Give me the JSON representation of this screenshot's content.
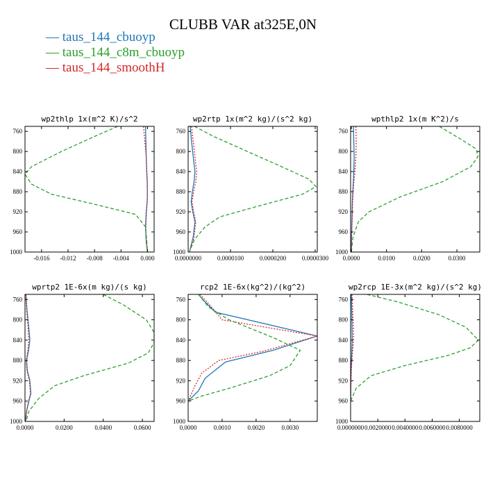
{
  "figure": {
    "title": "CLUBB VAR at325E,0N",
    "legend": [
      {
        "label": "— taus_144_cbuoyp",
        "color": "#1f77b4"
      },
      {
        "label": "— taus_144_c8m_cbuoyp",
        "color": "#2ca02c"
      },
      {
        "label": "— taus_144_smoothH",
        "color": "#d62728"
      }
    ]
  },
  "chart_data": [
    {
      "type": "line",
      "title": "wp2thlp  1x(m^2 K)/s^2",
      "xlim": [
        -0.0185,
        0.001
      ],
      "ylim": [
        1000,
        750
      ],
      "xticks": [
        -0.016,
        -0.012,
        -0.008,
        -0.004,
        0.0
      ],
      "xtick_labels": [
        "-0.016",
        "-0.012",
        "-0.008",
        "-0.004",
        "0.000"
      ],
      "yticks": [
        760,
        800,
        840,
        880,
        920,
        960,
        1000
      ],
      "ytick_labels": [
        "760",
        "800",
        "840",
        "880",
        "920",
        "960",
        "1000"
      ],
      "series": [
        {
          "name": "taus_144_cbuoyp",
          "color": "#1f77b4",
          "dash": "solid",
          "x": [
            -0.0003,
            -0.00025,
            -0.0002,
            -0.00012,
            -5e-05,
            -2e-05,
            -5e-05,
            -0.0002,
            -0.0003,
            -0.0002,
            0.0
          ],
          "y": [
            750,
            780,
            810,
            840,
            860,
            880,
            900,
            920,
            950,
            980,
            1000
          ]
        },
        {
          "name": "taus_144_smoothH",
          "color": "#d62728",
          "dash": "dot",
          "x": [
            -0.0006,
            -0.0004,
            -0.0002,
            -0.0001,
            -3e-05,
            -2e-05,
            -5e-05,
            -0.00015,
            -0.00025,
            -0.00018,
            0.0
          ],
          "y": [
            750,
            780,
            810,
            840,
            860,
            880,
            900,
            920,
            950,
            980,
            1000
          ]
        },
        {
          "name": "taus_144_c8m_cbuoyp",
          "color": "#2ca02c",
          "dash": "dash",
          "x": [
            -0.0045,
            -0.008,
            -0.013,
            -0.0175,
            -0.0185,
            -0.0175,
            -0.0145,
            -0.008,
            -0.0018,
            -0.0003,
            -0.0001,
            0.0
          ],
          "y": [
            750,
            770,
            800,
            830,
            845,
            865,
            885,
            905,
            925,
            950,
            980,
            1000
          ]
        }
      ]
    },
    {
      "type": "line",
      "title": "wp2rtp  1x(m^2 kg)/(s^2 kg)",
      "xlim": [
        0.0,
        3.05e-05
      ],
      "ylim": [
        1000,
        750
      ],
      "xticks": [
        0.0,
        1e-05,
        2e-05,
        3e-05
      ],
      "xtick_labels": [
        "0.0000000",
        "0.0000100",
        "0.0000200",
        "0.0000300"
      ],
      "yticks": [
        760,
        800,
        840,
        880,
        920,
        960,
        1000
      ],
      "ytick_labels": [
        "760",
        "800",
        "840",
        "880",
        "920",
        "960",
        "1000"
      ],
      "series": [
        {
          "name": "taus_144_cbuoyp",
          "color": "#1f77b4",
          "dash": "solid",
          "x": [
            5e-07,
            8e-07,
            1.2e-06,
            1.6e-06,
            1.4e-06,
            1e-06,
            7e-07,
            1.1e-06,
            1.6e-06,
            1.2e-06,
            3e-07
          ],
          "y": [
            750,
            780,
            810,
            840,
            860,
            880,
            900,
            920,
            940,
            970,
            1000
          ]
        },
        {
          "name": "taus_144_smoothH",
          "color": "#d62728",
          "dash": "dot",
          "x": [
            8e-07,
            1.2e-06,
            1.6e-06,
            2e-06,
            1.8e-06,
            1.3e-06,
            9e-07,
            1.3e-06,
            1.8e-06,
            1.4e-06,
            3e-07
          ],
          "y": [
            750,
            780,
            810,
            840,
            860,
            880,
            900,
            920,
            940,
            970,
            1000
          ]
        },
        {
          "name": "taus_144_c8m_cbuoyp",
          "color": "#2ca02c",
          "dash": "dash",
          "x": [
            1.5e-06,
            6e-06,
            1.4e-05,
            2.2e-05,
            2.85e-05,
            3.02e-05,
            2.7e-05,
            1.6e-05,
            7.5e-06,
            4e-06,
            1.5e-06,
            3e-07
          ],
          "y": [
            750,
            770,
            800,
            830,
            855,
            870,
            885,
            910,
            930,
            950,
            975,
            1000
          ]
        }
      ]
    },
    {
      "type": "line",
      "title": "wpthlp2  1x(m K^2)/s",
      "xlim": [
        -0.0002,
        0.0365
      ],
      "ylim": [
        1000,
        750
      ],
      "xticks": [
        0.0,
        0.01,
        0.02,
        0.03
      ],
      "xtick_labels": [
        "0.0000",
        "0.0100",
        "0.0200",
        "0.0300"
      ],
      "yticks": [
        760,
        800,
        840,
        880,
        920,
        960,
        1000
      ],
      "ytick_labels": [
        "760",
        "800",
        "840",
        "880",
        "920",
        "960",
        "1000"
      ],
      "series": [
        {
          "name": "taus_144_cbuoyp",
          "color": "#1f77b4",
          "dash": "solid",
          "x": [
            0.0006,
            0.0007,
            0.0008,
            0.0007,
            0.0005,
            0.0003,
            0.0002,
            0.0001,
            0.0
          ],
          "y": [
            750,
            780,
            810,
            840,
            870,
            900,
            930,
            960,
            1000
          ]
        },
        {
          "name": "taus_144_smoothH",
          "color": "#d62728",
          "dash": "dot",
          "x": [
            0.0013,
            0.0014,
            0.0013,
            0.001,
            0.0006,
            0.0004,
            0.0003,
            0.0001,
            0.0
          ],
          "y": [
            750,
            780,
            810,
            840,
            870,
            900,
            930,
            960,
            1000
          ]
        },
        {
          "name": "taus_144_c8m_cbuoyp",
          "color": "#2ca02c",
          "dash": "dash",
          "x": [
            0.025,
            0.031,
            0.0355,
            0.036,
            0.034,
            0.026,
            0.014,
            0.005,
            0.002,
            0.0005,
            0.0
          ],
          "y": [
            750,
            775,
            795,
            810,
            830,
            860,
            890,
            920,
            940,
            970,
            1000
          ]
        }
      ]
    },
    {
      "type": "line",
      "title": "wprtp2  1E-6x(m kg)/(s kg)",
      "xlim": [
        0.0,
        0.066
      ],
      "ylim": [
        1000,
        750
      ],
      "xticks": [
        0.0,
        0.02,
        0.04,
        0.06
      ],
      "xtick_labels": [
        "0.0000",
        "0.0200",
        "0.0400",
        "0.0600"
      ],
      "yticks": [
        760,
        800,
        840,
        880,
        920,
        960,
        1000
      ],
      "ytick_labels": [
        "760",
        "800",
        "840",
        "880",
        "920",
        "960",
        "1000"
      ],
      "series": [
        {
          "name": "taus_144_cbuoyp",
          "color": "#1f77b4",
          "dash": "solid",
          "x": [
            0.0005,
            0.001,
            0.0018,
            0.0025,
            0.0018,
            0.0008,
            0.0012,
            0.0025,
            0.003,
            0.002,
            0.0008,
            0.0003
          ],
          "y": [
            750,
            780,
            810,
            840,
            860,
            880,
            900,
            920,
            945,
            960,
            980,
            1000
          ]
        },
        {
          "name": "taus_144_smoothH",
          "color": "#d62728",
          "dash": "dot",
          "x": [
            0.0004,
            0.0008,
            0.0015,
            0.002,
            0.0015,
            0.0006,
            0.001,
            0.0022,
            0.0028,
            0.0018,
            0.0007,
            0.0002
          ],
          "y": [
            750,
            780,
            810,
            840,
            860,
            880,
            900,
            920,
            945,
            960,
            980,
            1000
          ]
        },
        {
          "name": "taus_144_c8m_cbuoyp",
          "color": "#2ca02c",
          "dash": "dash",
          "x": [
            0.04,
            0.05,
            0.062,
            0.066,
            0.066,
            0.063,
            0.053,
            0.03,
            0.015,
            0.007,
            0.002,
            0.0005
          ],
          "y": [
            750,
            770,
            800,
            825,
            845,
            865,
            885,
            910,
            930,
            955,
            980,
            1000
          ]
        }
      ]
    },
    {
      "type": "line",
      "title": "rcp2  1E-6x(kg^2)/(kg^2)",
      "xlim": [
        0.0,
        0.0038
      ],
      "ylim": [
        1000,
        750
      ],
      "xticks": [
        0.0,
        0.001,
        0.002,
        0.003
      ],
      "xtick_labels": [
        "0.0000",
        "0.0010",
        "0.0020",
        "0.0030"
      ],
      "yticks": [
        760,
        800,
        840,
        880,
        920,
        960,
        1000
      ],
      "ytick_labels": [
        "760",
        "800",
        "840",
        "880",
        "920",
        "960",
        "1000"
      ],
      "series": [
        {
          "name": "taus_144_cbuoyp",
          "color": "#1f77b4",
          "dash": "solid",
          "x": [
            0.0003,
            0.0005,
            0.0008,
            0.0038,
            0.0025,
            0.0011,
            0.0005,
            0.0003,
            0.0
          ],
          "y": [
            750,
            765,
            785,
            832,
            860,
            883,
            915,
            940,
            960
          ]
        },
        {
          "name": "taus_144_smoothH",
          "color": "#d62728",
          "dash": "dot",
          "x": [
            0.00035,
            0.0006,
            0.001,
            0.0038,
            0.0022,
            0.0009,
            0.0004,
            0.0002,
            0.0
          ],
          "y": [
            750,
            768,
            800,
            832,
            862,
            880,
            905,
            930,
            960
          ]
        },
        {
          "name": "taus_144_c8m_cbuoyp",
          "color": "#2ca02c",
          "dash": "dash",
          "x": [
            0.0003,
            0.0006,
            0.0012,
            0.0025,
            0.0033,
            0.003,
            0.0024,
            0.0012,
            0.0004,
            0.0
          ],
          "y": [
            750,
            775,
            800,
            835,
            860,
            890,
            910,
            935,
            950,
            960
          ]
        }
      ]
    },
    {
      "type": "line",
      "title": "wp2rcp  1E-3x(m^2 kg)/(s^2 kg)",
      "xlim": [
        0.0,
        0.0095
      ],
      "ylim": [
        1000,
        750
      ],
      "xticks": [
        0.0,
        0.002,
        0.004,
        0.006,
        0.008
      ],
      "xtick_labels": [
        "0.0000000",
        "0.0020000",
        "0.0040000",
        "0.0060000",
        "0.0080000"
      ],
      "yticks": [
        760,
        800,
        840,
        880,
        920,
        960,
        1000
      ],
      "ytick_labels": [
        "760",
        "800",
        "840",
        "880",
        "920",
        "960",
        "1000"
      ],
      "series": [
        {
          "name": "taus_144_cbuoyp",
          "color": "#1f77b4",
          "dash": "solid",
          "x": [
            5e-05,
            8e-05,
            0.0001,
            0.00012,
            8e-05,
            3e-05,
            1e-05,
            0.0
          ],
          "y": [
            750,
            780,
            810,
            840,
            870,
            900,
            930,
            960
          ]
        },
        {
          "name": "taus_144_smoothH",
          "color": "#d62728",
          "dash": "dot",
          "x": [
            0.0001,
            0.00015,
            0.0002,
            0.00022,
            0.00012,
            5e-05,
            2e-05,
            0.0
          ],
          "y": [
            750,
            780,
            810,
            840,
            870,
            900,
            930,
            960
          ]
        },
        {
          "name": "taus_144_c8m_cbuoyp",
          "color": "#2ca02c",
          "dash": "dash",
          "x": [
            0.0012,
            0.0035,
            0.0065,
            0.0085,
            0.0094,
            0.0088,
            0.0072,
            0.004,
            0.0015,
            0.0004,
            0.0
          ],
          "y": [
            750,
            765,
            790,
            815,
            840,
            855,
            870,
            890,
            910,
            935,
            960
          ]
        }
      ]
    }
  ]
}
